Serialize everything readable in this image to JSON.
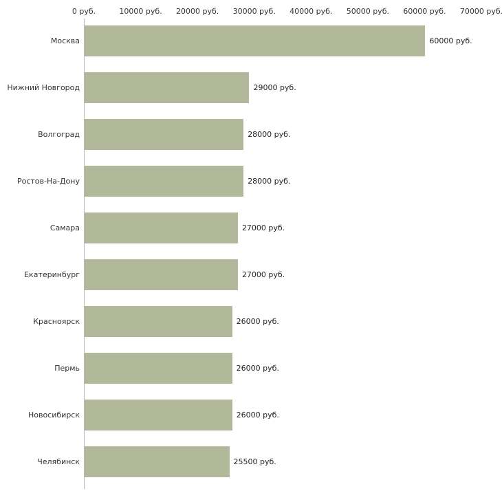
{
  "chart_data": {
    "type": "bar",
    "orientation": "horizontal",
    "title": "",
    "xlabel": "",
    "ylabel": "",
    "categories": [
      "Москва",
      "Нижний Новгород",
      "Волгоград",
      "Ростов-На-Дону",
      "Самара",
      "Екатеринбург",
      "Красноярск",
      "Пермь",
      "Новосибирск",
      "Челябинск"
    ],
    "values": [
      60000,
      29000,
      28000,
      28000,
      27000,
      27000,
      26000,
      26000,
      26000,
      25500
    ],
    "value_labels": [
      "60000 руб.",
      "29000 руб.",
      "28000 руб.",
      "28000 руб.",
      "27000 руб.",
      "27000 руб.",
      "26000 руб.",
      "26000 руб.",
      "26000 руб.",
      "25500 руб."
    ],
    "x_ticks": [
      "0 руб.",
      "10000 руб.",
      "20000 руб.",
      "30000 руб.",
      "40000 руб.",
      "50000 руб.",
      "60000 руб.",
      "70000 руб."
    ],
    "xlim": [
      0,
      70000
    ],
    "x_tick_step": 10000,
    "grid": false,
    "legend": false,
    "bar_color": "#b2b89a",
    "axis_color": "#b8b8b8",
    "text_color": "#333333",
    "background_color": "#ffffff"
  }
}
